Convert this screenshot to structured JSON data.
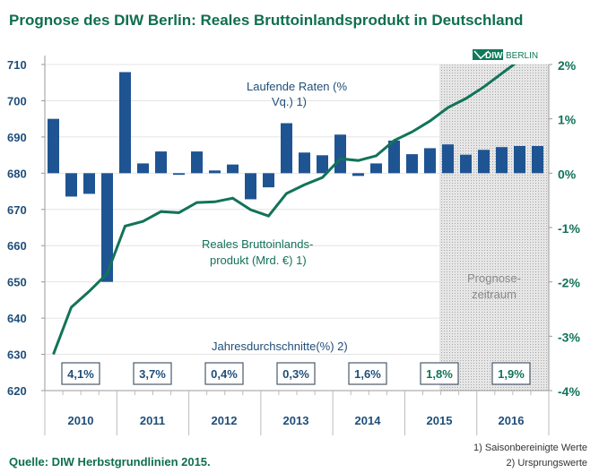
{
  "title": "Prognose des DIW Berlin: Reales Bruttoinlandsprodukt in Deutschland",
  "logo": {
    "text": "DIW BERLIN",
    "color": "#0f7a5a"
  },
  "source": "Quelle: DIW Herbstgrundlinien 2015.",
  "footnotes": [
    "1) Saisonbereinigte Werte",
    "2) Ursprungswerte"
  ],
  "colors": {
    "title": "#0f6e50",
    "bars": "#1f5493",
    "line": "#127359",
    "forecast_shade": "#d9d9d9"
  },
  "chart_data": {
    "type": "bar+line",
    "left_axis": {
      "ylim": [
        620,
        710
      ],
      "ticks": [
        "620",
        "630",
        "640",
        "650",
        "660",
        "670",
        "680",
        "690",
        "700",
        "710"
      ]
    },
    "right_axis": {
      "ylim": [
        -4,
        2
      ],
      "ticks": [
        "-4%",
        "-3%",
        "-2%",
        "-1%",
        "0%",
        "1%",
        "2%"
      ]
    },
    "years": [
      "2010",
      "2011",
      "2012",
      "2013",
      "2014",
      "2015",
      "2016"
    ],
    "grid": true,
    "forecast_label": "Prognose-\nzeitraum",
    "forecast_start_quarter": "2015 Q3",
    "series": [
      {
        "name": "Laufende Raten (% Vq.) 1)",
        "type": "bar",
        "axis": "right",
        "values": [
          1.0,
          -0.43,
          -0.38,
          -2.0,
          1.86,
          0.18,
          0.4,
          -0.03,
          0.4,
          0.05,
          0.16,
          -0.48,
          -0.26,
          0.92,
          0.38,
          0.33,
          0.71,
          -0.05,
          0.18,
          0.6,
          0.35,
          0.46,
          0.53,
          0.34,
          0.43,
          0.48,
          0.5,
          0.5
        ]
      },
      {
        "name": "Reales Bruttoinlands-produkt (Mrd. €) 1)",
        "type": "line",
        "axis": "left",
        "values": [
          630,
          643,
          647.4,
          652.3,
          665.4,
          666.7,
          669.4,
          669.1,
          671.9,
          672.1,
          673.1,
          669.9,
          668.2,
          674.4,
          676.8,
          678.8,
          684.0,
          683.5,
          684.8,
          689.0,
          691.4,
          694.4,
          698.1,
          700.6,
          703.8,
          707.5,
          711.2,
          715
        ]
      }
    ],
    "annotations": {
      "bar_label_1": "Laufende Raten (%",
      "bar_label_2": "Vq.) 1)",
      "line_label_1": "Reales Bruttoinlands-",
      "line_label_2": "produkt (Mrd. €) 1)",
      "annual_label": "Jahresdurchschnitte(%) 2)"
    },
    "annual_averages": [
      "4,1%",
      "3,7%",
      "0,4%",
      "0,3%",
      "1,6%",
      "1,8%",
      "1,9%"
    ]
  }
}
